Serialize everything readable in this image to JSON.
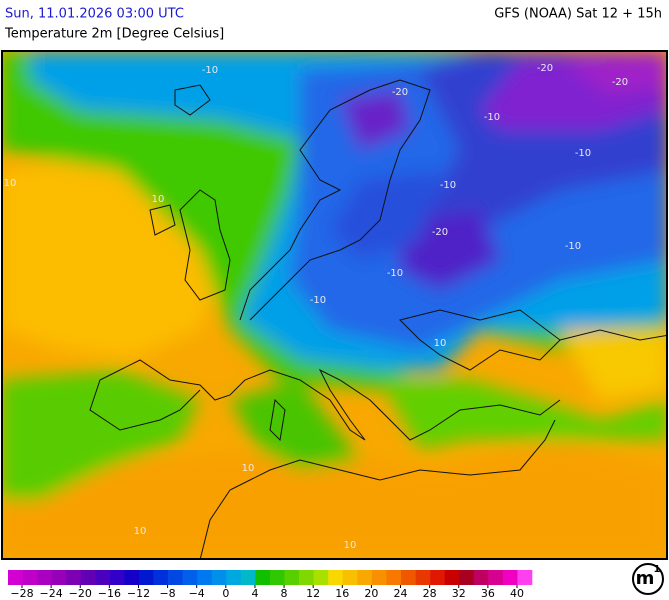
{
  "header": {
    "datetime": "Sun, 11.01.2026 03:00 UTC",
    "model": "GFS (NOAA) Sat 12 + 15h",
    "parameter": "Temperature 2m [Degree Celsius]"
  },
  "map": {
    "contour_labels": [
      "-10",
      "-20",
      "-20",
      "-20",
      "-10",
      "-10",
      "-20",
      "-10",
      "-10",
      "-10",
      "10",
      "10",
      "10",
      "10",
      "10",
      "-10",
      "10"
    ]
  },
  "legend": {
    "colors": [
      "#d200d2",
      "#be00c8",
      "#aa00c0",
      "#9600b8",
      "#7d00b4",
      "#6400b4",
      "#4b00c0",
      "#3200c8",
      "#1400c8",
      "#0018d0",
      "#0030dc",
      "#0048e4",
      "#0060ec",
      "#0078f0",
      "#0090ec",
      "#00a8e0",
      "#00b8c8",
      "#10c000",
      "#30c800",
      "#58d000",
      "#80d800",
      "#a8e000",
      "#f8d800",
      "#f8c000",
      "#f8a800",
      "#f89000",
      "#f87800",
      "#f05800",
      "#e83800",
      "#e01800",
      "#c80000",
      "#a80020",
      "#c00060",
      "#d80090",
      "#f000c0",
      "#ff40f0"
    ],
    "ticks": [
      {
        "value": -28,
        "label": "−28"
      },
      {
        "value": -24,
        "label": "−24"
      },
      {
        "value": -20,
        "label": "−20"
      },
      {
        "value": -16,
        "label": "−16"
      },
      {
        "value": -12,
        "label": "−12"
      },
      {
        "value": -8,
        "label": "−8"
      },
      {
        "value": -4,
        "label": "−4"
      },
      0,
      4,
      8,
      12,
      16,
      20,
      24,
      28,
      32,
      36,
      40
    ]
  },
  "branding": {
    "logo": "m",
    "logo_sup": "1"
  }
}
